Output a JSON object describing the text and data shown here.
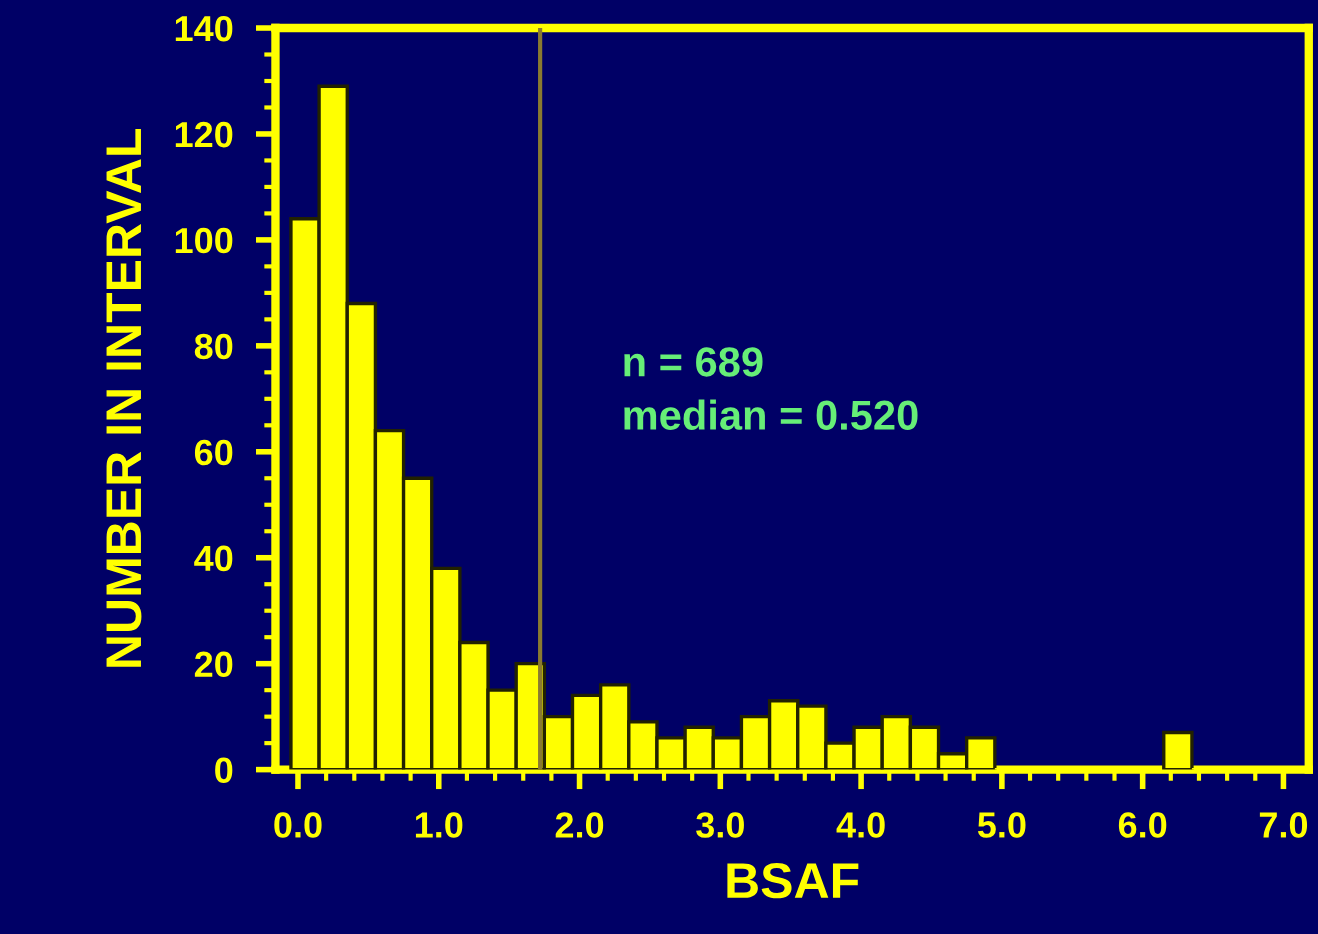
{
  "chart_data": {
    "type": "histogram",
    "xlabel": "BSAF",
    "ylabel": "NUMBER IN INTERVAL",
    "bins": [
      -0.05,
      0.15,
      0.35,
      0.55,
      0.75,
      0.95,
      1.15,
      1.35,
      1.55,
      1.75,
      1.95,
      2.15,
      2.35,
      2.55,
      2.75,
      2.95,
      3.15,
      3.35,
      3.55,
      3.75,
      3.95,
      4.15,
      4.35,
      4.55,
      4.75,
      4.95,
      5.15,
      5.35,
      5.55,
      5.75,
      5.95,
      6.15,
      6.35,
      6.55,
      6.75,
      6.95,
      7.15
    ],
    "values": [
      104,
      129,
      88,
      64,
      55,
      38,
      24,
      15,
      20,
      10,
      14,
      16,
      9,
      6,
      8,
      6,
      10,
      13,
      12,
      5,
      8,
      10,
      8,
      3,
      6,
      0,
      0,
      0,
      0,
      0,
      0,
      7,
      0,
      0,
      0,
      0
    ],
    "color": "#ffff00",
    "xlim": [
      -0.16,
      7.18
    ],
    "xticks": [
      {
        "value": 0,
        "label": "0.0"
      },
      {
        "value": 1,
        "label": "1.0"
      },
      {
        "value": 2,
        "label": "2.0"
      },
      {
        "value": 3,
        "label": "3.0"
      },
      {
        "value": 4,
        "label": "4.0"
      },
      {
        "value": 5,
        "label": "5.0"
      },
      {
        "value": 6,
        "label": "6.0"
      },
      {
        "value": 7,
        "label": "7.0"
      }
    ],
    "ylim": [
      0,
      140
    ],
    "yticks": [
      0,
      20,
      40,
      60,
      80,
      100,
      120,
      140
    ],
    "ref_lines": [
      {
        "axis": "x",
        "value": 1.72,
        "color": "#8a7a30"
      }
    ],
    "annotations": [
      "n = 689",
      "median = 0.520"
    ],
    "grid": false,
    "legend": false
  }
}
